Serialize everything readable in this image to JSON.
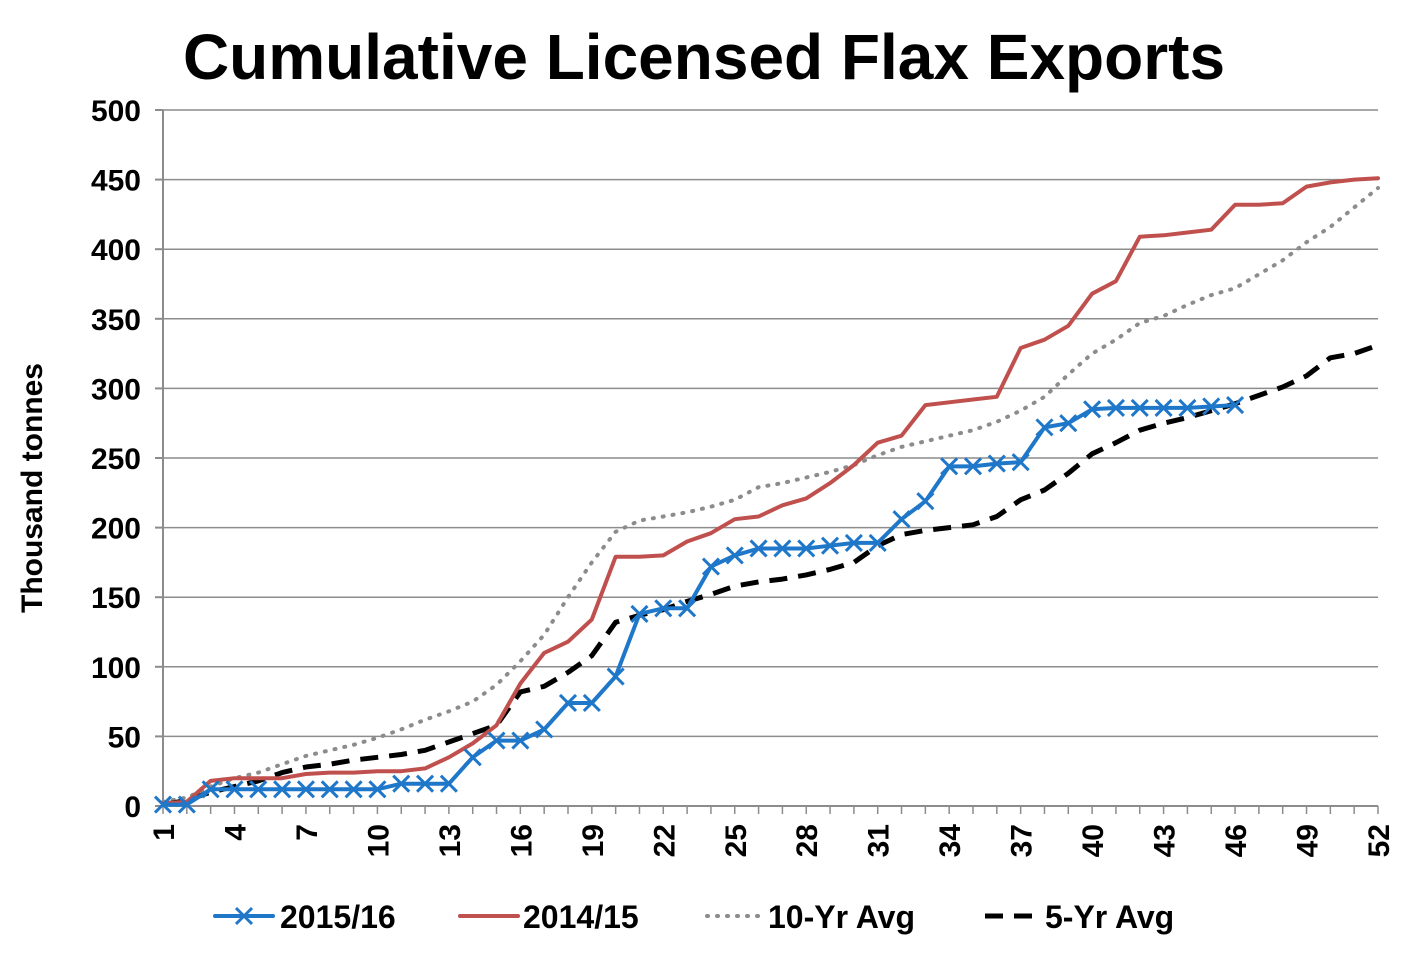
{
  "chart_data": {
    "type": "line",
    "title": "Cumulative Licensed Flax Exports",
    "xlabel": "",
    "ylabel": "Thousand tonnes",
    "ylim": [
      0,
      500
    ],
    "xlim": [
      1,
      52
    ],
    "yticks": [
      0,
      50,
      100,
      150,
      200,
      250,
      300,
      350,
      400,
      450,
      500
    ],
    "xticks": [
      1,
      4,
      7,
      10,
      13,
      16,
      19,
      22,
      25,
      28,
      31,
      34,
      37,
      40,
      43,
      46,
      49,
      52
    ],
    "grid": true,
    "legend_position": "bottom",
    "series": [
      {
        "name": "2015/16",
        "color": "#1F77C9",
        "style": "solid-x-markers",
        "x": [
          1,
          2,
          3,
          4,
          5,
          6,
          7,
          8,
          9,
          10,
          11,
          12,
          13,
          14,
          15,
          16,
          17,
          18,
          19,
          20,
          21,
          22,
          23,
          24,
          25,
          26,
          27,
          28,
          29,
          30,
          31,
          32,
          33,
          34,
          35,
          36,
          37,
          38,
          39,
          40,
          41,
          42,
          43,
          44,
          45,
          46
        ],
        "values": [
          1,
          1,
          12,
          12,
          12,
          12,
          12,
          12,
          12,
          12,
          16,
          16,
          16,
          35,
          47,
          47,
          55,
          74,
          74,
          93,
          138,
          142,
          142,
          172,
          180,
          185,
          185,
          185,
          187,
          189,
          189,
          206,
          219,
          244,
          244,
          246,
          247,
          272,
          275,
          285,
          286,
          286,
          286,
          286,
          287,
          288
        ]
      },
      {
        "name": "2014/15",
        "color": "#C0504D",
        "style": "solid",
        "x": [
          1,
          2,
          3,
          4,
          5,
          6,
          7,
          8,
          9,
          10,
          11,
          12,
          13,
          14,
          15,
          16,
          17,
          18,
          19,
          20,
          21,
          22,
          23,
          24,
          25,
          26,
          27,
          28,
          29,
          30,
          31,
          32,
          33,
          34,
          35,
          36,
          37,
          38,
          39,
          40,
          41,
          42,
          43,
          44,
          45,
          46,
          47,
          48,
          49,
          50,
          51,
          52
        ],
        "values": [
          2,
          3,
          18,
          20,
          20,
          20,
          23,
          24,
          24,
          25,
          25,
          27,
          35,
          45,
          58,
          88,
          110,
          118,
          134,
          179,
          179,
          180,
          190,
          196,
          206,
          208,
          216,
          221,
          232,
          245,
          261,
          266,
          288,
          290,
          292,
          294,
          329,
          335,
          345,
          368,
          377,
          409,
          410,
          412,
          414,
          432,
          432,
          433,
          445,
          448,
          450,
          451
        ]
      },
      {
        "name": "10-Yr Avg",
        "color": "#8C8C8C",
        "style": "dotted",
        "x": [
          1,
          2,
          3,
          4,
          5,
          6,
          7,
          8,
          9,
          10,
          11,
          12,
          13,
          14,
          15,
          16,
          17,
          18,
          19,
          20,
          21,
          22,
          23,
          24,
          25,
          26,
          27,
          28,
          29,
          30,
          31,
          32,
          33,
          34,
          35,
          36,
          37,
          38,
          39,
          40,
          41,
          42,
          43,
          44,
          45,
          46,
          47,
          48,
          49,
          50,
          51,
          52
        ],
        "values": [
          3,
          6,
          14,
          20,
          24,
          30,
          36,
          40,
          44,
          49,
          55,
          62,
          68,
          75,
          87,
          104,
          123,
          150,
          175,
          197,
          205,
          208,
          211,
          215,
          220,
          229,
          232,
          236,
          240,
          245,
          252,
          258,
          262,
          266,
          270,
          276,
          284,
          294,
          310,
          325,
          335,
          347,
          352,
          360,
          367,
          372,
          382,
          392,
          405,
          416,
          430,
          444
        ]
      },
      {
        "name": "5-Yr Avg",
        "color": "#000000",
        "style": "dashed",
        "x": [
          1,
          2,
          3,
          4,
          5,
          6,
          7,
          8,
          9,
          10,
          11,
          12,
          13,
          14,
          15,
          16,
          17,
          18,
          19,
          20,
          21,
          22,
          23,
          24,
          25,
          26,
          27,
          28,
          29,
          30,
          31,
          32,
          33,
          34,
          35,
          36,
          37,
          38,
          39,
          40,
          41,
          42,
          43,
          44,
          45,
          46,
          47,
          48,
          49,
          50,
          51,
          52
        ],
        "values": [
          1,
          4,
          10,
          14,
          18,
          24,
          28,
          30,
          33,
          35,
          37,
          40,
          46,
          52,
          58,
          82,
          86,
          96,
          108,
          132,
          137,
          141,
          147,
          152,
          158,
          161,
          163,
          166,
          170,
          175,
          187,
          195,
          198,
          200,
          202,
          208,
          220,
          227,
          239,
          253,
          261,
          270,
          275,
          279,
          284,
          289,
          295,
          301,
          309,
          322,
          325,
          331
        ]
      }
    ]
  }
}
